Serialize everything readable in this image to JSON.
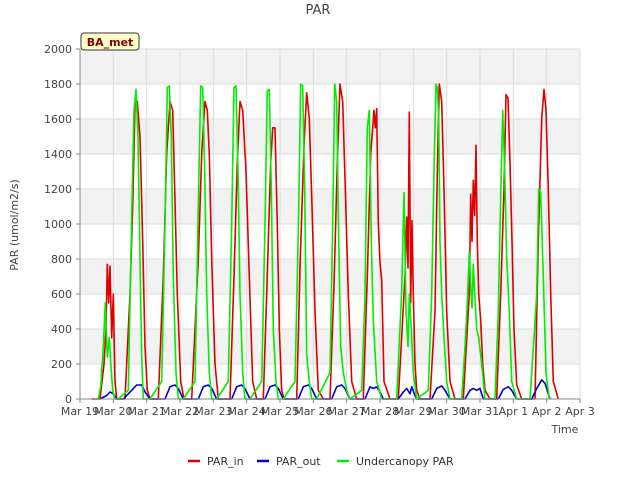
{
  "chart_data": {
    "type": "line",
    "title": "PAR",
    "xlabel": "Time",
    "ylabel": "PAR (umol/m2/s)",
    "badge": "BA_met",
    "ylim": [
      0,
      2000
    ],
    "xlim": [
      0,
      15
    ],
    "yticks": [
      0,
      200,
      400,
      600,
      800,
      1000,
      1200,
      1400,
      1600,
      1800,
      2000
    ],
    "xticks": [
      {
        "x": 0,
        "label": "Mar 19"
      },
      {
        "x": 1,
        "label": "Mar 20"
      },
      {
        "x": 2,
        "label": "Mar 21"
      },
      {
        "x": 3,
        "label": "Mar 22"
      },
      {
        "x": 4,
        "label": "Mar 23"
      },
      {
        "x": 5,
        "label": "Mar 24"
      },
      {
        "x": 6,
        "label": "Mar 25"
      },
      {
        "x": 7,
        "label": "Mar 26"
      },
      {
        "x": 8,
        "label": "Mar 27"
      },
      {
        "x": 9,
        "label": "Mar 28"
      },
      {
        "x": 10,
        "label": "Mar 29"
      },
      {
        "x": 11,
        "label": "Mar 30"
      },
      {
        "x": 12,
        "label": "Mar 31"
      },
      {
        "x": 13,
        "label": "Apr 1"
      },
      {
        "x": 14,
        "label": "Apr 2"
      },
      {
        "x": 15,
        "label": "Apr 3"
      }
    ],
    "grid": true,
    "legend_position": "bottom",
    "series": [
      {
        "name": "PAR_in",
        "color": "#dd0000",
        "x": [
          0.35,
          0.6,
          0.72,
          0.78,
          0.82,
          0.86,
          0.9,
          0.95,
          1.0,
          1.05,
          1.1,
          1.35,
          1.5,
          1.58,
          1.65,
          1.72,
          1.8,
          1.88,
          1.95,
          2.02,
          2.1,
          2.2,
          2.35,
          2.5,
          2.6,
          2.7,
          2.78,
          2.84,
          2.92,
          3.02,
          3.12,
          3.22,
          3.35,
          3.55,
          3.65,
          3.75,
          3.82,
          3.88,
          3.95,
          4.05,
          4.15,
          4.3,
          4.5,
          4.62,
          4.72,
          4.8,
          4.88,
          4.98,
          5.08,
          5.18,
          5.3,
          5.5,
          5.6,
          5.72,
          5.78,
          5.85,
          5.92,
          5.98,
          6.05,
          6.12,
          6.2,
          6.5,
          6.6,
          6.72,
          6.8,
          6.88,
          6.96,
          7.05,
          7.15,
          7.3,
          7.5,
          7.62,
          7.72,
          7.8,
          7.88,
          7.96,
          8.05,
          8.15,
          8.3,
          8.5,
          8.62,
          8.72,
          8.78,
          8.82,
          8.86,
          8.9,
          8.95,
          9.0,
          9.05,
          9.12,
          9.3,
          9.55,
          9.75,
          9.8,
          9.84,
          9.88,
          9.92,
          9.96,
          10.0,
          10.05,
          10.1,
          10.2,
          10.5,
          10.65,
          10.72,
          10.78,
          10.85,
          10.92,
          11.0,
          11.1,
          11.25,
          11.5,
          11.68,
          11.72,
          11.76,
          11.8,
          11.84,
          11.88,
          11.92,
          11.96,
          12.02,
          12.08,
          12.15,
          12.3,
          12.5,
          12.62,
          12.72,
          12.78,
          12.84,
          12.9,
          12.96,
          13.02,
          13.1,
          13.25,
          13.5,
          13.65,
          13.75,
          13.85,
          13.92,
          13.98,
          14.05,
          14.12,
          14.2,
          14.35
        ],
        "y": [
          0,
          0,
          200,
          400,
          770,
          550,
          760,
          350,
          600,
          100,
          0,
          0,
          600,
          1100,
          1680,
          1700,
          1500,
          900,
          300,
          50,
          0,
          0,
          0,
          700,
          1400,
          1700,
          1650,
          1200,
          600,
          100,
          0,
          0,
          0,
          800,
          1400,
          1700,
          1650,
          1400,
          800,
          200,
          0,
          0,
          0,
          700,
          1350,
          1700,
          1650,
          1300,
          700,
          100,
          0,
          0,
          600,
          1350,
          1550,
          1550,
          1000,
          400,
          50,
          0,
          0,
          0,
          750,
          1450,
          1750,
          1600,
          1100,
          500,
          50,
          0,
          0,
          650,
          1350,
          1800,
          1700,
          1200,
          600,
          100,
          0,
          0,
          700,
          1400,
          1550,
          1650,
          1550,
          1660,
          1000,
          780,
          680,
          100,
          0,
          0,
          700,
          1040,
          750,
          1640,
          550,
          1020,
          600,
          200,
          50,
          0,
          0,
          500,
          1300,
          1800,
          1700,
          1200,
          500,
          100,
          0,
          0,
          600,
          1170,
          900,
          1250,
          1050,
          1450,
          900,
          600,
          450,
          200,
          50,
          0,
          0,
          600,
          1200,
          1740,
          1720,
          1350,
          900,
          400,
          80,
          0,
          0,
          0,
          900,
          1600,
          1770,
          1650,
          1200,
          600,
          100,
          0
        ]
      },
      {
        "name": "PAR_out",
        "color": "#0000cc",
        "x": [
          0.6,
          0.8,
          0.9,
          1.0,
          1.1,
          1.3,
          1.55,
          1.7,
          1.85,
          1.95,
          2.1,
          2.55,
          2.7,
          2.85,
          2.95,
          3.1,
          3.55,
          3.7,
          3.85,
          3.95,
          4.1,
          4.55,
          4.7,
          4.85,
          4.95,
          5.1,
          5.55,
          5.7,
          5.85,
          5.95,
          6.1,
          6.55,
          6.7,
          6.85,
          6.95,
          7.1,
          7.55,
          7.7,
          7.85,
          7.95,
          8.1,
          8.55,
          8.7,
          8.8,
          8.9,
          9.0,
          9.1,
          9.55,
          9.7,
          9.8,
          9.9,
          9.95,
          10.05,
          10.1,
          10.55,
          10.7,
          10.85,
          10.95,
          11.1,
          11.55,
          11.7,
          11.8,
          11.9,
          12.0,
          12.1,
          12.55,
          12.7,
          12.85,
          12.95,
          13.1,
          13.55,
          13.7,
          13.85,
          13.95,
          14.1
        ],
        "y": [
          0,
          20,
          40,
          30,
          0,
          0,
          50,
          80,
          80,
          40,
          0,
          0,
          70,
          80,
          60,
          0,
          0,
          70,
          80,
          60,
          0,
          0,
          70,
          80,
          60,
          0,
          0,
          70,
          80,
          60,
          0,
          0,
          70,
          80,
          60,
          0,
          0,
          70,
          80,
          60,
          0,
          0,
          70,
          60,
          70,
          40,
          0,
          0,
          40,
          60,
          30,
          70,
          20,
          0,
          0,
          60,
          75,
          50,
          0,
          0,
          50,
          60,
          50,
          60,
          0,
          0,
          55,
          70,
          50,
          0,
          0,
          60,
          110,
          90,
          0
        ]
      },
      {
        "name": "Undercanopy PAR",
        "color": "#00ee00",
        "x": [
          0.55,
          0.62,
          0.7,
          0.76,
          0.82,
          0.88,
          0.93,
          0.98,
          1.05,
          1.15,
          1.45,
          1.55,
          1.62,
          1.68,
          1.74,
          1.8,
          1.85,
          1.9,
          2.0,
          2.1,
          2.45,
          2.55,
          2.62,
          2.68,
          2.74,
          2.8,
          2.88,
          2.95,
          3.1,
          3.45,
          3.55,
          3.62,
          3.68,
          3.74,
          3.8,
          3.88,
          3.95,
          4.1,
          4.45,
          4.55,
          4.62,
          4.68,
          4.74,
          4.8,
          4.88,
          4.95,
          5.1,
          5.45,
          5.55,
          5.62,
          5.68,
          5.74,
          5.8,
          5.88,
          5.95,
          6.1,
          6.45,
          6.55,
          6.62,
          6.68,
          6.74,
          6.8,
          6.88,
          6.95,
          7.1,
          7.5,
          7.58,
          7.64,
          7.7,
          7.76,
          7.82,
          7.9,
          8.0,
          8.1,
          8.45,
          8.55,
          8.62,
          8.68,
          8.74,
          8.8,
          8.9,
          9.05,
          9.5,
          9.65,
          9.72,
          9.78,
          9.84,
          9.88,
          9.94,
          10.0,
          10.1,
          10.45,
          10.55,
          10.62,
          10.68,
          10.72,
          10.76,
          10.8,
          10.85,
          10.92,
          11.0,
          11.1,
          11.45,
          11.55,
          11.62,
          11.68,
          11.72,
          11.76,
          11.8,
          11.84,
          11.9,
          11.96,
          12.05,
          12.15,
          12.45,
          12.55,
          12.62,
          12.68,
          12.74,
          12.8,
          12.88,
          12.95,
          13.1,
          13.5,
          13.62,
          13.7,
          13.76,
          13.82,
          13.9,
          13.98,
          14.08
        ],
        "y": [
          0,
          70,
          300,
          550,
          240,
          350,
          180,
          50,
          0,
          0,
          50,
          1050,
          1650,
          1770,
          1500,
          800,
          240,
          0,
          0,
          0,
          100,
          1000,
          1780,
          1790,
          1500,
          700,
          150,
          0,
          0,
          100,
          1100,
          1790,
          1780,
          1300,
          600,
          150,
          0,
          0,
          100,
          1000,
          1780,
          1790,
          1300,
          600,
          150,
          0,
          0,
          100,
          1000,
          1760,
          1770,
          1200,
          400,
          100,
          0,
          0,
          100,
          950,
          1800,
          1790,
          1200,
          250,
          100,
          0,
          0,
          150,
          1000,
          1800,
          1700,
          900,
          300,
          150,
          50,
          0,
          50,
          600,
          1550,
          1650,
          900,
          450,
          100,
          0,
          0,
          620,
          1180,
          500,
          300,
          600,
          400,
          150,
          0,
          50,
          600,
          1300,
          1800,
          1780,
          1600,
          900,
          600,
          350,
          100,
          0,
          0,
          300,
          550,
          840,
          650,
          520,
          770,
          600,
          400,
          350,
          200,
          0,
          0,
          500,
          1150,
          1650,
          1300,
          800,
          500,
          100,
          0,
          0,
          350,
          600,
          1200,
          1180,
          700,
          150,
          0
        ]
      }
    ]
  }
}
